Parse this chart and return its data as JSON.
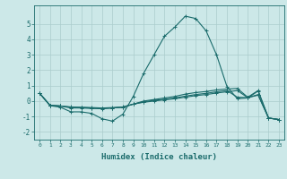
{
  "xlabel": "Humidex (Indice chaleur)",
  "xlim": [
    -0.5,
    23.5
  ],
  "ylim": [
    -2.5,
    6.2
  ],
  "yticks": [
    -2,
    -1,
    0,
    1,
    2,
    3,
    4,
    5
  ],
  "xticks": [
    0,
    1,
    2,
    3,
    4,
    5,
    6,
    7,
    8,
    9,
    10,
    11,
    12,
    13,
    14,
    15,
    16,
    17,
    18,
    19,
    20,
    21,
    22,
    23
  ],
  "bg_color": "#cce8e8",
  "grid_color": "#aacccc",
  "line_color": "#1a6b6b",
  "lines": [
    {
      "x": [
        0,
        1,
        2,
        3,
        4,
        5,
        6,
        7,
        8,
        9,
        10,
        11,
        12,
        13,
        14,
        15,
        16,
        17,
        18,
        19,
        20,
        21,
        22,
        23
      ],
      "y": [
        0.5,
        -0.3,
        -0.4,
        -0.7,
        -0.7,
        -0.8,
        -1.15,
        -1.3,
        -0.85,
        0.3,
        1.8,
        3.0,
        4.2,
        4.8,
        5.5,
        5.35,
        4.55,
        3.0,
        0.95,
        0.15,
        0.2,
        0.65,
        -1.1,
        -1.2
      ]
    },
    {
      "x": [
        0,
        1,
        2,
        3,
        4,
        5,
        6,
        7,
        8,
        9,
        10,
        11,
        12,
        13,
        14,
        15,
        16,
        17,
        18,
        19,
        20,
        21,
        22,
        23
      ],
      "y": [
        0.5,
        -0.28,
        -0.32,
        -0.45,
        -0.45,
        -0.48,
        -0.5,
        -0.45,
        -0.4,
        -0.2,
        0.0,
        0.1,
        0.2,
        0.3,
        0.45,
        0.55,
        0.62,
        0.72,
        0.78,
        0.82,
        0.25,
        0.68,
        -1.1,
        -1.2
      ]
    },
    {
      "x": [
        0,
        1,
        2,
        3,
        4,
        5,
        6,
        7,
        8,
        9,
        10,
        11,
        12,
        13,
        14,
        15,
        16,
        17,
        18,
        19,
        20,
        21,
        22,
        23
      ],
      "y": [
        0.5,
        -0.28,
        -0.32,
        -0.4,
        -0.42,
        -0.45,
        -0.48,
        -0.45,
        -0.4,
        -0.2,
        -0.05,
        0.05,
        0.12,
        0.2,
        0.32,
        0.42,
        0.5,
        0.6,
        0.68,
        0.25,
        0.22,
        0.42,
        -1.1,
        -1.2
      ]
    },
    {
      "x": [
        0,
        1,
        2,
        3,
        4,
        5,
        6,
        7,
        8,
        9,
        10,
        11,
        12,
        13,
        14,
        15,
        16,
        17,
        18,
        19,
        20,
        21,
        22,
        23
      ],
      "y": [
        0.5,
        -0.28,
        -0.32,
        -0.38,
        -0.4,
        -0.42,
        -0.45,
        -0.42,
        -0.38,
        -0.2,
        -0.08,
        0.0,
        0.08,
        0.15,
        0.25,
        0.35,
        0.42,
        0.52,
        0.6,
        0.68,
        0.22,
        0.38,
        -1.1,
        -1.2
      ]
    }
  ]
}
